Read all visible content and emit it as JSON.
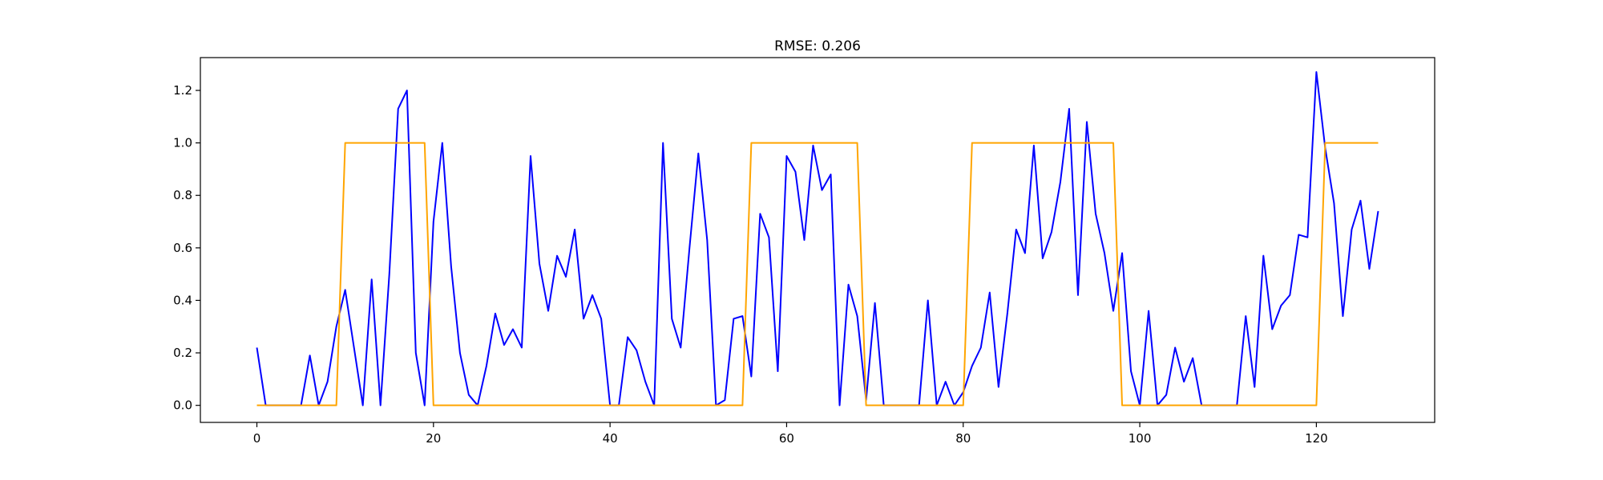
{
  "chart_data": {
    "type": "line",
    "title": "RMSE: 0.206",
    "xlabel": "",
    "ylabel": "",
    "xlim": [
      -6.4,
      133.4
    ],
    "ylim": [
      -0.065,
      1.325
    ],
    "xticks": [
      0,
      20,
      40,
      60,
      80,
      100,
      120
    ],
    "yticks": [
      0.0,
      0.2,
      0.4,
      0.6,
      0.8,
      1.0,
      1.2
    ],
    "xtick_labels": [
      "0",
      "20",
      "40",
      "60",
      "80",
      "100",
      "120"
    ],
    "ytick_labels": [
      "0.0",
      "0.2",
      "0.4",
      "0.6",
      "0.8",
      "1.0",
      "1.2"
    ],
    "grid": false,
    "legend": "none",
    "series": [
      {
        "color": "#0000ff",
        "x_start": 0,
        "x_step": 1,
        "values": [
          0.22,
          0.0,
          0.0,
          0.0,
          0.0,
          0.0,
          0.19,
          0.0,
          0.09,
          0.3,
          0.44,
          0.22,
          0.0,
          0.48,
          0.0,
          0.5,
          1.13,
          1.2,
          0.2,
          0.0,
          0.7,
          1.0,
          0.53,
          0.2,
          0.04,
          0.0,
          0.15,
          0.35,
          0.23,
          0.29,
          0.22,
          0.95,
          0.54,
          0.36,
          0.57,
          0.49,
          0.67,
          0.33,
          0.42,
          0.33,
          0.0,
          0.0,
          0.26,
          0.21,
          0.09,
          0.0,
          1.0,
          0.33,
          0.22,
          0.6,
          0.96,
          0.63,
          0.0,
          0.02,
          0.33,
          0.34,
          0.11,
          0.73,
          0.64,
          0.13,
          0.95,
          0.89,
          0.63,
          0.99,
          0.82,
          0.88,
          0.0,
          0.46,
          0.34,
          0.02,
          0.39,
          0.0,
          0.0,
          0.0,
          0.0,
          0.0,
          0.4,
          0.0,
          0.09,
          0.0,
          0.05,
          0.15,
          0.22,
          0.43,
          0.07,
          0.35,
          0.67,
          0.58,
          0.99,
          0.56,
          0.66,
          0.85,
          1.13,
          0.42,
          1.08,
          0.73,
          0.58,
          0.36,
          0.58,
          0.13,
          0.0,
          0.36,
          0.0,
          0.04,
          0.22,
          0.09,
          0.18,
          0.0,
          0.0,
          0.0,
          0.0,
          0.0,
          0.34,
          0.07,
          0.57,
          0.29,
          0.38,
          0.42,
          0.65,
          0.64,
          1.27,
          0.98,
          0.77,
          0.34,
          0.67,
          0.78,
          0.52,
          0.74
        ]
      },
      {
        "color": "#ffa500",
        "x_start": 0,
        "x_step": 1,
        "values": [
          0,
          0,
          0,
          0,
          0,
          0,
          0,
          0,
          0,
          0,
          1,
          1,
          1,
          1,
          1,
          1,
          1,
          1,
          1,
          1,
          0,
          0,
          0,
          0,
          0,
          0,
          0,
          0,
          0,
          0,
          0,
          0,
          0,
          0,
          0,
          0,
          0,
          0,
          0,
          0,
          0,
          0,
          0,
          0,
          0,
          0,
          0,
          0,
          0,
          0,
          0,
          0,
          0,
          0,
          0,
          0,
          1,
          1,
          1,
          1,
          1,
          1,
          1,
          1,
          1,
          1,
          1,
          1,
          1,
          0,
          0,
          0,
          0,
          0,
          0,
          0,
          0,
          0,
          0,
          0,
          0,
          1,
          1,
          1,
          1,
          1,
          1,
          1,
          1,
          1,
          1,
          1,
          1,
          1,
          1,
          1,
          1,
          1,
          0,
          0,
          0,
          0,
          0,
          0,
          0,
          0,
          0,
          0,
          0,
          0,
          0,
          0,
          0,
          0,
          0,
          0,
          0,
          0,
          0,
          0,
          0,
          1,
          1,
          1,
          1,
          1,
          1,
          1
        ]
      }
    ]
  }
}
